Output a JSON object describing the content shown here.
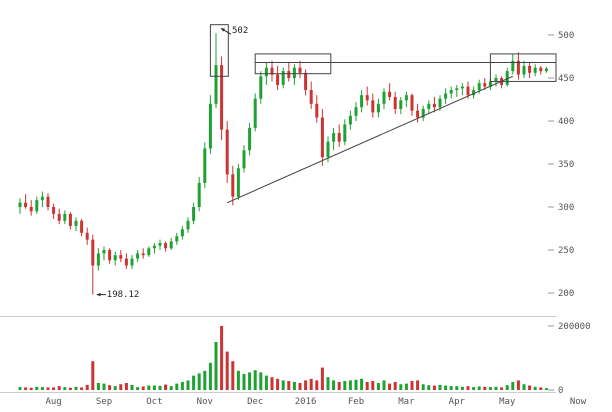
{
  "chart_data": {
    "type": "candlestick",
    "title": "",
    "legend": "none",
    "grid": "right-tick-dashes-only",
    "now_label": "Now",
    "months": [
      {
        "label": "Aug",
        "start_index": 6
      },
      {
        "label": "Sep",
        "start_index": 15
      },
      {
        "label": "Oct",
        "start_index": 24
      },
      {
        "label": "Nov",
        "start_index": 33
      },
      {
        "label": "Dec",
        "start_index": 42
      },
      {
        "label": "2016",
        "start_index": 51
      },
      {
        "label": "Feb",
        "start_index": 60
      },
      {
        "label": "Mar",
        "start_index": 69
      },
      {
        "label": "Apr",
        "start_index": 78
      },
      {
        "label": "May",
        "start_index": 87
      }
    ],
    "price_axis": {
      "ticks": [
        500,
        450,
        400,
        350,
        300,
        250,
        200
      ],
      "min": 185,
      "max": 515
    },
    "volume_axis": {
      "ticks": [
        200000,
        0
      ],
      "max": 200000
    },
    "annotations": {
      "high": {
        "text": "502",
        "index": 35,
        "price": 502
      },
      "low": {
        "text": "198.12",
        "index": 13,
        "price": 198.12
      }
    },
    "overlays": {
      "boxes": [
        {
          "name": "spike-box",
          "i0": 34,
          "i1": 37.2,
          "p0": 452,
          "p1": 512
        },
        {
          "name": "consolidation-box",
          "i0": 42,
          "i1": 55.5,
          "p0": 455,
          "p1": 478
        },
        {
          "name": "breakout-box",
          "i0": 84,
          "to_x_right": true,
          "p0": 446,
          "p1": 478
        }
      ],
      "hline": {
        "price": 468,
        "from_index": 42,
        "to_x_right": true
      },
      "trendline": {
        "from": {
          "index": 37,
          "price": 305
        },
        "to": {
          "index": 88,
          "price": 452
        }
      }
    },
    "colors": {
      "up": "#1fa233",
      "down": "#cc3333",
      "axis_text": "#555555",
      "tick_dash": "#999999",
      "separator": "#cccccc",
      "drawing": "#444444",
      "annotation": "#222222",
      "background": "#ffffff"
    },
    "candles_format": [
      "open",
      "high",
      "low",
      "close",
      "volume"
    ],
    "candles": [
      [
        300,
        310,
        292,
        305,
        9000
      ],
      [
        305,
        315,
        298,
        300,
        8000
      ],
      [
        300,
        308,
        290,
        295,
        7000
      ],
      [
        295,
        312,
        292,
        308,
        10000
      ],
      [
        308,
        318,
        300,
        312,
        9000
      ],
      [
        312,
        316,
        296,
        300,
        8000
      ],
      [
        300,
        304,
        286,
        292,
        8000
      ],
      [
        292,
        298,
        280,
        284,
        12000
      ],
      [
        284,
        296,
        280,
        292,
        9000
      ],
      [
        292,
        294,
        274,
        278,
        7000
      ],
      [
        278,
        288,
        272,
        284,
        10000
      ],
      [
        284,
        286,
        266,
        270,
        8000
      ],
      [
        270,
        276,
        256,
        262,
        16000
      ],
      [
        262,
        268,
        198.12,
        232,
        90000
      ],
      [
        232,
        252,
        226,
        246,
        22000
      ],
      [
        246,
        254,
        238,
        250,
        20000
      ],
      [
        250,
        252,
        234,
        238,
        15000
      ],
      [
        238,
        248,
        232,
        244,
        12000
      ],
      [
        244,
        250,
        236,
        240,
        18000
      ],
      [
        240,
        246,
        228,
        232,
        22000
      ],
      [
        232,
        244,
        228,
        240,
        16000
      ],
      [
        240,
        250,
        236,
        246,
        9000
      ],
      [
        246,
        252,
        240,
        244,
        11000
      ],
      [
        244,
        254,
        242,
        252,
        14000
      ],
      [
        252,
        258,
        246,
        255,
        14000
      ],
      [
        255,
        262,
        250,
        258,
        13000
      ],
      [
        258,
        260,
        248,
        252,
        17000
      ],
      [
        252,
        264,
        250,
        260,
        12000
      ],
      [
        260,
        270,
        256,
        266,
        20000
      ],
      [
        266,
        278,
        262,
        274,
        25000
      ],
      [
        274,
        288,
        270,
        284,
        30000
      ],
      [
        284,
        305,
        280,
        300,
        45000
      ],
      [
        300,
        335,
        295,
        328,
        52000
      ],
      [
        328,
        375,
        322,
        368,
        60000
      ],
      [
        368,
        430,
        362,
        420,
        85000
      ],
      [
        420,
        502,
        415,
        465,
        150000
      ],
      [
        465,
        475,
        378,
        390,
        200000
      ],
      [
        390,
        400,
        328,
        338,
        120000
      ],
      [
        338,
        348,
        302,
        312,
        90000
      ],
      [
        312,
        350,
        308,
        345,
        60000
      ],
      [
        345,
        372,
        340,
        366,
        50000
      ],
      [
        366,
        398,
        360,
        392,
        55000
      ],
      [
        392,
        432,
        388,
        426,
        62000
      ],
      [
        426,
        458,
        420,
        452,
        55000
      ],
      [
        452,
        468,
        442,
        462,
        45000
      ],
      [
        462,
        470,
        446,
        454,
        40000
      ],
      [
        454,
        464,
        436,
        442,
        35000
      ],
      [
        442,
        462,
        438,
        458,
        30000
      ],
      [
        458,
        468,
        446,
        450,
        28000
      ],
      [
        450,
        466,
        442,
        462,
        25000
      ],
      [
        462,
        470,
        450,
        456,
        22000
      ],
      [
        456,
        460,
        430,
        436,
        30000
      ],
      [
        436,
        446,
        414,
        420,
        35000
      ],
      [
        420,
        430,
        398,
        404,
        30000
      ],
      [
        404,
        414,
        348,
        358,
        70000
      ],
      [
        358,
        382,
        352,
        376,
        40000
      ],
      [
        376,
        392,
        366,
        386,
        30000
      ],
      [
        386,
        396,
        370,
        376,
        25000
      ],
      [
        376,
        402,
        372,
        396,
        28000
      ],
      [
        396,
        412,
        390,
        406,
        30000
      ],
      [
        406,
        422,
        400,
        416,
        32000
      ],
      [
        416,
        436,
        410,
        430,
        35000
      ],
      [
        430,
        440,
        418,
        424,
        25000
      ],
      [
        424,
        432,
        404,
        410,
        28000
      ],
      [
        410,
        426,
        404,
        420,
        22000
      ],
      [
        420,
        438,
        414,
        434,
        30000
      ],
      [
        434,
        444,
        424,
        428,
        20000
      ],
      [
        428,
        434,
        408,
        414,
        25000
      ],
      [
        414,
        428,
        408,
        424,
        18000
      ],
      [
        424,
        434,
        416,
        430,
        20000
      ],
      [
        430,
        432,
        406,
        412,
        28000
      ],
      [
        412,
        420,
        398,
        404,
        30000
      ],
      [
        404,
        418,
        400,
        414,
        18000
      ],
      [
        414,
        424,
        408,
        420,
        15000
      ],
      [
        420,
        428,
        410,
        416,
        14000
      ],
      [
        416,
        430,
        412,
        426,
        16000
      ],
      [
        426,
        438,
        420,
        432,
        14000
      ],
      [
        432,
        440,
        426,
        436,
        12000
      ],
      [
        436,
        442,
        428,
        438,
        12000
      ],
      [
        438,
        444,
        430,
        440,
        10000
      ],
      [
        440,
        446,
        426,
        430,
        12000
      ],
      [
        430,
        440,
        426,
        436,
        9000
      ],
      [
        436,
        448,
        432,
        444,
        11000
      ],
      [
        444,
        450,
        436,
        440,
        10000
      ],
      [
        440,
        450,
        436,
        446,
        9000
      ],
      [
        446,
        454,
        440,
        450,
        10000
      ],
      [
        450,
        452,
        438,
        442,
        8000
      ],
      [
        442,
        462,
        440,
        458,
        15000
      ],
      [
        458,
        478,
        454,
        470,
        25000
      ],
      [
        470,
        480,
        448,
        454,
        30000
      ],
      [
        454,
        470,
        450,
        464,
        18000
      ],
      [
        464,
        468,
        450,
        456,
        14000
      ],
      [
        456,
        466,
        452,
        462,
        10000
      ],
      [
        462,
        464,
        454,
        458,
        8000
      ],
      [
        458,
        463,
        456,
        461,
        6000
      ]
    ]
  }
}
